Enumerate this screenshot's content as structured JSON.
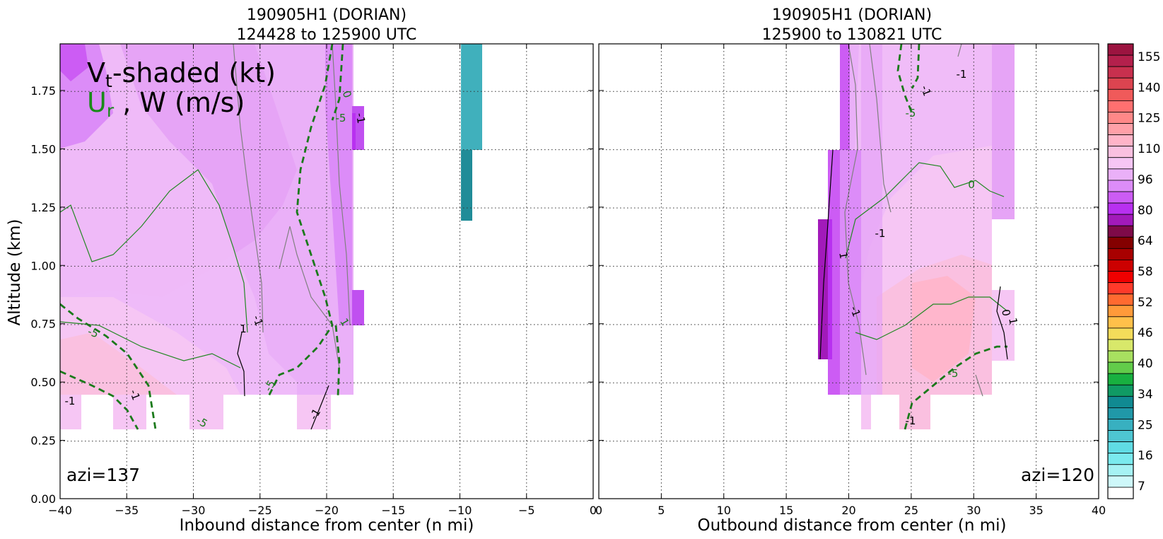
{
  "figure": {
    "ylabel": "Altitude (km)",
    "overlay_line1_prefix": "V",
    "overlay_line1_sub": "t",
    "overlay_line1_suffix": "-shaded (kt)",
    "overlay_line2_green": "U",
    "overlay_line2_green_sub": "r",
    "overlay_line2_suffix": " , W (m/s)"
  },
  "chart_data": [
    {
      "type": "heatmap",
      "title_line1": "190905H1 (DORIAN)",
      "title_line2": "124428 to 125900 UTC",
      "xlabel": "Inbound distance from center (n mi)",
      "ylabel": "Altitude (km)",
      "xlim": [
        -40,
        0
      ],
      "ylim": [
        0,
        1.95
      ],
      "xticks": [
        -40,
        -35,
        -30,
        -25,
        -20,
        -15,
        -10,
        -5,
        0
      ],
      "xtick_labels": [
        "−40",
        "−35",
        "−30",
        "−25",
        "−20",
        "−15",
        "−10",
        "−5",
        "0"
      ],
      "yticks": [
        0.0,
        0.25,
        0.5,
        0.75,
        1.0,
        1.25,
        1.5,
        1.75
      ],
      "ytick_labels": [
        "0.00",
        "0.25",
        "0.50",
        "0.75",
        "1.00",
        "1.25",
        "1.50",
        "1.75"
      ],
      "grid": true,
      "annotation": "azi=137",
      "annotation_position": "bottom-left",
      "contour_labels": [
        "-1",
        "-5",
        "1",
        "-1",
        "-5",
        "0",
        "-5",
        "-1",
        "1",
        "-1",
        "-5",
        "-1"
      ]
    },
    {
      "type": "heatmap",
      "title_line1": "190905H1 (DORIAN)",
      "title_line2": "125900 to 130821 UTC",
      "xlabel": "Outbound distance from center (n mi)",
      "xlim": [
        0,
        40
      ],
      "ylim": [
        0,
        1.95
      ],
      "xticks": [
        0,
        5,
        10,
        15,
        20,
        25,
        30,
        35,
        40
      ],
      "xtick_labels": [
        "0",
        "5",
        "10",
        "15",
        "20",
        "25",
        "30",
        "35",
        "40"
      ],
      "yticks": [
        0.0,
        0.25,
        0.5,
        0.75,
        1.0,
        1.25,
        1.5,
        1.75
      ],
      "grid": true,
      "annotation": "azi=120",
      "annotation_position": "bottom-right",
      "contour_labels": [
        "-1",
        "-5",
        "-1",
        "0",
        "-1",
        "1",
        "-1",
        "-5",
        "-1",
        "0",
        "1"
      ]
    }
  ],
  "colorbar": {
    "tick_labels": [
      "155",
      "140",
      "125",
      "110",
      "96",
      "80",
      "64",
      "58",
      "52",
      "46",
      "40",
      "34",
      "25",
      "16",
      "7"
    ],
    "colors_top_to_bottom": [
      "#9c1440",
      "#b4204c",
      "#c8304e",
      "#dc4450",
      "#f05a5a",
      "#ff7070",
      "#ff8888",
      "#ffa0a8",
      "#ffb4c8",
      "#fac0e0",
      "#f6c6f4",
      "#eab0f8",
      "#dc8cf8",
      "#cc5cf4",
      "#b830f0",
      "#a21aba",
      "#7e0a48",
      "#840000",
      "#a80000",
      "#cc0000",
      "#f00000",
      "#ff3a2a",
      "#ff6a30",
      "#ff9a3a",
      "#ffc04a",
      "#f4dc5a",
      "#d8e86a",
      "#a8e060",
      "#62cc4a",
      "#18b040",
      "#109a64",
      "#108a92",
      "#2098a8",
      "#38b0c0",
      "#4ec6d2",
      "#60dce4",
      "#7aeaee",
      "#a6f2f4",
      "#cef8fa",
      "#ffffff"
    ]
  }
}
